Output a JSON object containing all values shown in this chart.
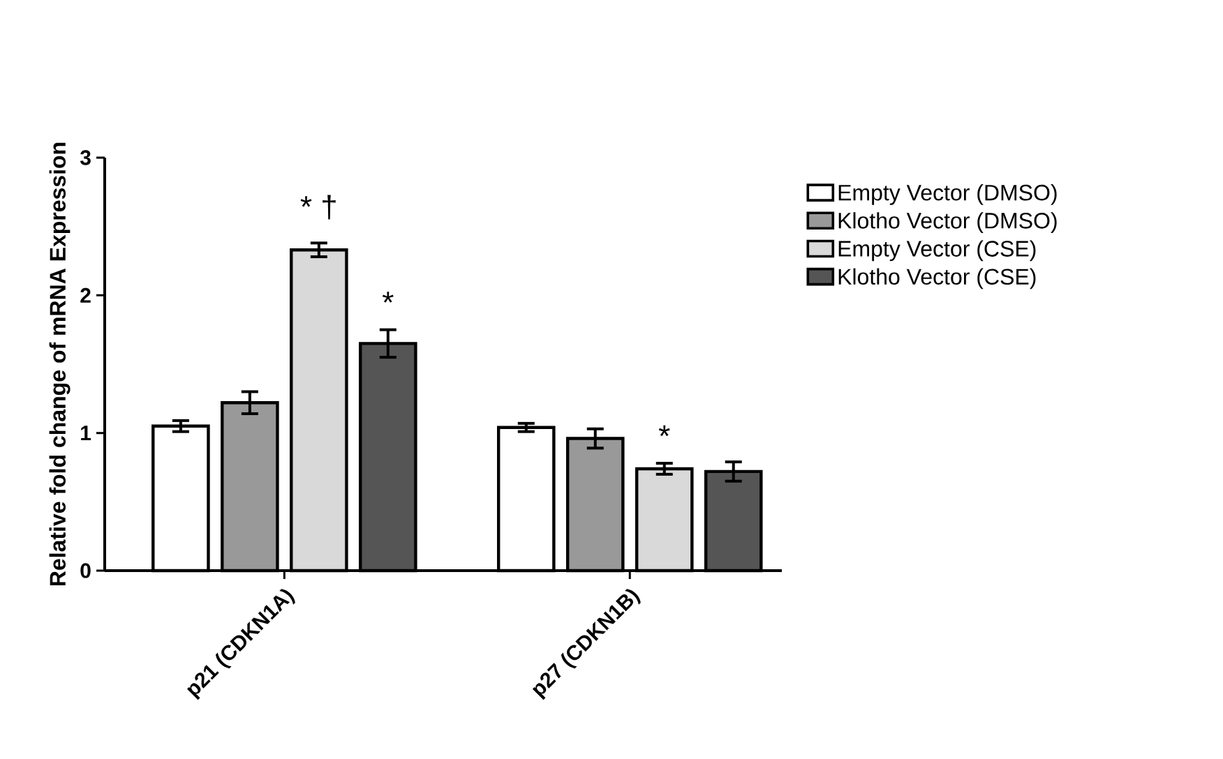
{
  "chart_data": {
    "type": "bar",
    "ylabel": "Relative fold change of mRNA Expression",
    "categories": [
      "p21 (CDKN1A)",
      "p27 (CDKN1B)"
    ],
    "series": [
      {
        "name": "Empty Vector (DMSO)",
        "color": "#ffffff",
        "values": [
          1.05,
          1.04
        ],
        "errors": [
          0.04,
          0.03
        ]
      },
      {
        "name": "Klotho Vector (DMSO)",
        "color": "#999999",
        "values": [
          1.22,
          0.96
        ],
        "errors": [
          0.08,
          0.07
        ]
      },
      {
        "name": "Empty Vector (CSE)",
        "color": "#d9d9d9",
        "values": [
          2.33,
          0.74
        ],
        "errors": [
          0.05,
          0.04
        ]
      },
      {
        "name": "Klotho Vector (CSE)",
        "color": "#555555",
        "values": [
          1.65,
          0.72
        ],
        "errors": [
          0.1,
          0.07
        ]
      }
    ],
    "ylim": [
      0,
      3
    ],
    "yticks": [
      0,
      1,
      2,
      3
    ],
    "grid": false,
    "legend": "right",
    "annotations": [
      "* †",
      "*",
      "*"
    ]
  }
}
